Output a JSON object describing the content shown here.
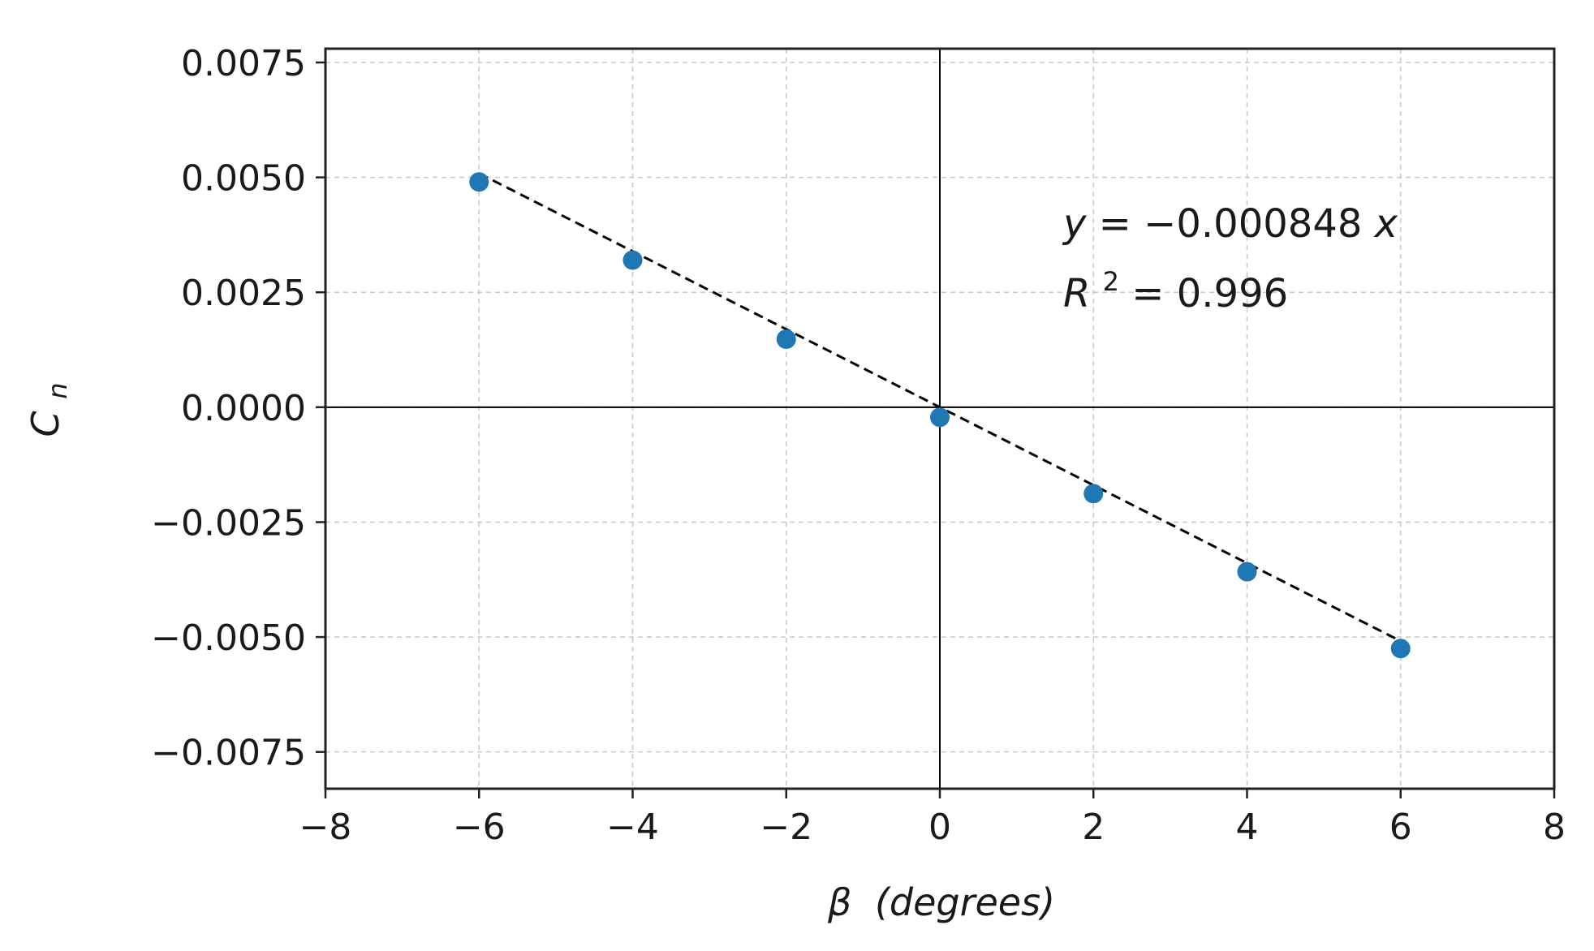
{
  "chart_data": {
    "type": "scatter",
    "x": [
      -6,
      -4,
      -2,
      0,
      2,
      4,
      6
    ],
    "series": [
      {
        "values": [
          0.0049,
          0.0032,
          0.00148,
          -0.00022,
          -0.00188,
          -0.00358,
          -0.00525
        ],
        "color": "#1f77b4",
        "marker": "circle"
      }
    ],
    "fit_line": {
      "slope": -0.000848,
      "intercept": 0,
      "style": "dashed",
      "color": "#000000"
    },
    "xlim": [
      -8,
      8
    ],
    "ylim": [
      -0.0083,
      0.0078
    ],
    "x_ticks": [
      -8,
      -6,
      -4,
      -2,
      0,
      2,
      4,
      6,
      8
    ],
    "x_tick_labels": [
      "−8",
      "−6",
      "−4",
      "−2",
      "0",
      "2",
      "4",
      "6",
      "8"
    ],
    "y_ticks": [
      0.0075,
      0.005,
      0.0025,
      0,
      -0.0025,
      -0.005,
      -0.0075
    ],
    "y_tick_labels": [
      "0.0075",
      "0.0050",
      "0.0025",
      "0.0000",
      "−0.0025",
      "−0.0050",
      "−0.0075"
    ],
    "xlabel": {
      "symbol": "β",
      "text": "(degrees)"
    },
    "ylabel": {
      "base": "C",
      "sub": "n"
    },
    "annotation": {
      "line1_var": "y",
      "line1_rest": " = −0.000848",
      "line1_end": "x",
      "line2_var": "R",
      "line2_sup": "2",
      "line2_rest": " = 0.996"
    },
    "grid": true,
    "zero_lines": true
  }
}
